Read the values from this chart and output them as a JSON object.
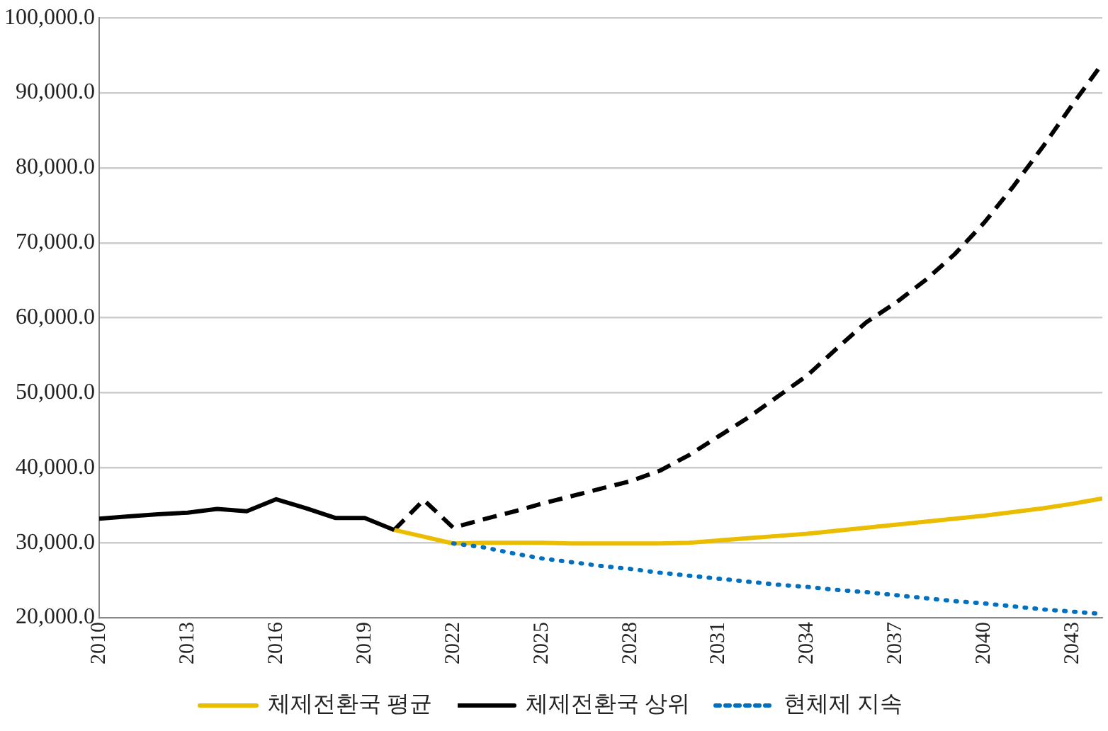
{
  "chart_data": {
    "type": "line",
    "xlim": [
      2010,
      2044
    ],
    "xticks": [
      2010,
      2013,
      2016,
      2019,
      2022,
      2025,
      2028,
      2031,
      2034,
      2037,
      2040,
      2043
    ],
    "ylim": [
      20000,
      100000
    ],
    "yticks": [
      {
        "value": 20000,
        "label": "20,000.0"
      },
      {
        "value": 30000,
        "label": "30,000.0"
      },
      {
        "value": 40000,
        "label": "40,000.0"
      },
      {
        "value": 50000,
        "label": "50,000.0"
      },
      {
        "value": 60000,
        "label": "60,000.0"
      },
      {
        "value": 70000,
        "label": "70,000.0"
      },
      {
        "value": 80000,
        "label": "80,000.0"
      },
      {
        "value": 90000,
        "label": "90,000.0"
      },
      {
        "value": 100000,
        "label": "100,000.0"
      }
    ],
    "grid": "y",
    "legend": "bottom",
    "marker": "none",
    "series": [
      {
        "color": "#000000",
        "line_style": "solid",
        "x": [
          2010,
          2011,
          2012,
          2013,
          2014,
          2015,
          2016,
          2017,
          2018,
          2019,
          2020
        ],
        "values": [
          33200,
          33500,
          33800,
          34000,
          34500,
          34200,
          35800,
          34600,
          33300,
          33300,
          31700
        ]
      },
      {
        "name": "체제전환국 평균",
        "color": "#ebbd00",
        "line_style": "solid",
        "x": [
          2020,
          2021,
          2022,
          2023,
          2024,
          2025,
          2026,
          2027,
          2028,
          2029,
          2030,
          2031,
          2032,
          2033,
          2034,
          2035,
          2036,
          2037,
          2038,
          2039,
          2040,
          2041,
          2042,
          2043,
          2044
        ],
        "values": [
          31700,
          30800,
          29900,
          30000,
          30000,
          30000,
          29900,
          29900,
          29900,
          29900,
          30000,
          30300,
          30600,
          30900,
          31200,
          31600,
          32000,
          32400,
          32800,
          33200,
          33600,
          34100,
          34600,
          35200,
          35900
        ]
      },
      {
        "name": "체제전환국 상위",
        "color": "#000000",
        "line_style": "dashed",
        "x": [
          2020,
          2021,
          2022,
          2023,
          2024,
          2025,
          2026,
          2027,
          2028,
          2029,
          2030,
          2031,
          2032,
          2033,
          2034,
          2035,
          2036,
          2037,
          2038,
          2039,
          2040,
          2041,
          2042,
          2043,
          2044
        ],
        "values": [
          31700,
          35700,
          32000,
          33100,
          34100,
          35200,
          36200,
          37200,
          38200,
          39600,
          41700,
          44200,
          46700,
          49500,
          52300,
          55900,
          59400,
          62000,
          65000,
          68500,
          72700,
          77600,
          82900,
          88500,
          93900
        ]
      },
      {
        "name": "현체제 지속",
        "color": "#0070c0",
        "line_style": "dotted",
        "x": [
          2022,
          2023,
          2024,
          2025,
          2026,
          2027,
          2028,
          2029,
          2030,
          2031,
          2032,
          2033,
          2034,
          2035,
          2036,
          2037,
          2038,
          2039,
          2040,
          2041,
          2042,
          2043,
          2044
        ],
        "values": [
          29900,
          29400,
          28600,
          27900,
          27400,
          26900,
          26500,
          26000,
          25600,
          25200,
          24800,
          24400,
          24100,
          23700,
          23400,
          23000,
          22600,
          22200,
          21900,
          21500,
          21100,
          20800,
          20500
        ]
      }
    ]
  }
}
